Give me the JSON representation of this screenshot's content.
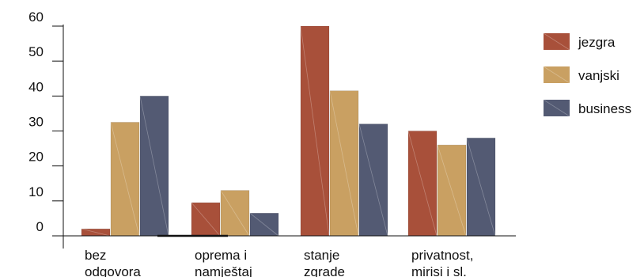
{
  "chart_data": {
    "type": "bar",
    "categories": [
      [
        "bez",
        "odgovora"
      ],
      [
        "oprema i",
        "namještaj"
      ],
      [
        "stanje",
        "zgrade"
      ],
      [
        "privatnost,",
        "mirisi i sl."
      ]
    ],
    "series": [
      {
        "name": "jezgra",
        "color": "#a8503a",
        "values": [
          2,
          9.5,
          60,
          30
        ]
      },
      {
        "name": "vanjski",
        "color": "#c9a062",
        "values": [
          32.5,
          13,
          41.5,
          26
        ]
      },
      {
        "name": "business",
        "color": "#535a73",
        "values": [
          40,
          6.5,
          32,
          28
        ]
      }
    ],
    "yticks": [
      0,
      10,
      20,
      30,
      40,
      50,
      60
    ],
    "ylim": [
      0,
      60
    ],
    "legend_position": "right",
    "grid": false
  }
}
